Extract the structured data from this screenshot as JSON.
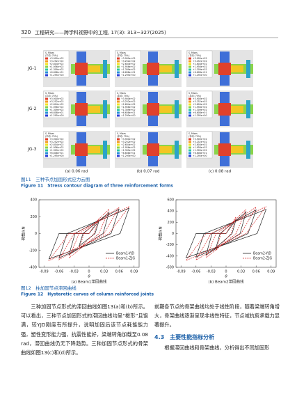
{
  "header": {
    "page": "320",
    "journal": "工程研究——跨学科视野中的工程, 17(3): 313−327(2025)"
  },
  "figure11": {
    "row_labels": [
      "JG-1",
      "JG-2",
      "JG-3"
    ],
    "column_labels": [
      "(a) 0.06 rad",
      "(b) 0.07 rad",
      "(c) 0.08 rad"
    ],
    "legend": [
      "S, Mises",
      "(平均: 75%)",
      "+3.900e+02",
      "+3.252e+02",
      "+2.604e+02",
      "+1.956e+02",
      "+1.309e+02",
      "+6.608e+01",
      "+1.295e+00"
    ],
    "caption_cn": "图11　三种节点加固形式应力云图",
    "caption_en": "Figure 11　Stress contour diagram of three reinforcement forms"
  },
  "chart_data": [
    {
      "type": "line",
      "x_label": "θ",
      "y_label": "荷载/kN",
      "caption": "(a) Beam1滞回曲线",
      "xlim": [
        -0.1,
        0.1
      ],
      "xticks": [
        -0.09,
        -0.06,
        -0.03,
        0,
        0.03,
        0.06,
        0.09
      ],
      "ylim": [
        -400,
        400
      ],
      "yticks": [
        -400,
        -200,
        0,
        200,
        400
      ],
      "legend": "lower right",
      "series": [
        {
          "name": "Beam1-YJD",
          "color": "#222222",
          "dashed": false,
          "x": [
            0,
            0.02,
            0.012,
            -0.02,
            -0.012,
            0.04,
            0.028,
            -0.04,
            -0.028,
            0.06,
            0.044,
            -0.06,
            -0.044,
            0.08,
            0.062,
            -0.08,
            -0.06,
            0
          ],
          "values": [
            0,
            150,
            0,
            -150,
            0,
            250,
            0,
            -250,
            0,
            290,
            0,
            -290,
            0,
            300,
            0,
            -300,
            0,
            0
          ]
        },
        {
          "name": "Beam1-ZJG",
          "color": "#d62728",
          "dashed": true,
          "x": [
            0,
            0.02,
            0.01,
            -0.02,
            -0.01,
            0.04,
            0.02,
            -0.04,
            -0.02,
            0.06,
            0.03,
            -0.06,
            -0.03,
            0.08,
            0.04,
            -0.08,
            -0.04,
            0
          ],
          "values": [
            0,
            180,
            0,
            -180,
            0,
            290,
            0,
            -290,
            0,
            310,
            0,
            -310,
            0,
            320,
            0,
            -320,
            0,
            0
          ]
        }
      ]
    },
    {
      "type": "line",
      "x_label": "θ",
      "y_label": "荷载/kN",
      "caption": "(b) Beam2滞回曲线",
      "xlim": [
        -0.1,
        0.1
      ],
      "xticks": [
        -0.09,
        -0.06,
        -0.03,
        0,
        0.03,
        0.06,
        0.09
      ],
      "ylim": [
        -600,
        600
      ],
      "yticks": [
        -600,
        -400,
        -200,
        0,
        200,
        400,
        600
      ],
      "legend": "lower right",
      "series": [
        {
          "name": "Beam2-YJD",
          "color": "#222222",
          "dashed": false,
          "x": [
            0,
            0.02,
            0.012,
            -0.02,
            -0.012,
            0.04,
            0.028,
            -0.04,
            -0.028,
            0.06,
            0.044,
            -0.06,
            -0.044,
            0.08,
            0.062,
            -0.08,
            -0.06,
            0
          ],
          "values": [
            0,
            250,
            0,
            -250,
            0,
            380,
            0,
            -380,
            0,
            420,
            0,
            -420,
            0,
            430,
            0,
            -430,
            0,
            0
          ]
        },
        {
          "name": "Beam2-ZJG",
          "color": "#d62728",
          "dashed": true,
          "x": [
            0,
            0.02,
            0.01,
            -0.02,
            -0.01,
            0.04,
            0.02,
            -0.04,
            -0.02,
            0.06,
            0.03,
            -0.06,
            -0.03,
            0.08,
            0.04,
            -0.08,
            -0.04,
            0
          ],
          "values": [
            0,
            300,
            0,
            -300,
            0,
            430,
            0,
            -430,
            0,
            470,
            0,
            -470,
            0,
            480,
            0,
            -480,
            0,
            0
          ]
        }
      ]
    }
  ],
  "figure12": {
    "caption_cn": "图12　柱加固节点滞回曲线",
    "caption_en": "Figure 12　Hysteretic curves of column reinforced joints"
  },
  "body": {
    "left_paragraph": "三种加固节点形式的滞回曲线如图13(a)和(b)所示。可以看出，三种节点加固形式的滞回曲线均呈“梭形”且饱满，较YJD刚度有所提升，说明加固后该节点耗能能力强，塑性变形能力强，抗震性能好，梁端转角加载至0.08 rad，滞回曲线仍无下降趋势。三种加固节点形式的骨架曲线如图13(c)和(d)所示。",
    "right_paragraph": "前期各节点的骨架曲线均处于线性阶段，随着梁端转角增大，骨架曲线逐渐呈现非线性特征，节点域抗剪承载力显著提升。",
    "section_heading": "4.3　主要性能指标分析",
    "right_paragraph_2": "根据滞回曲线和骨架曲线，分析得出不同加固形"
  }
}
